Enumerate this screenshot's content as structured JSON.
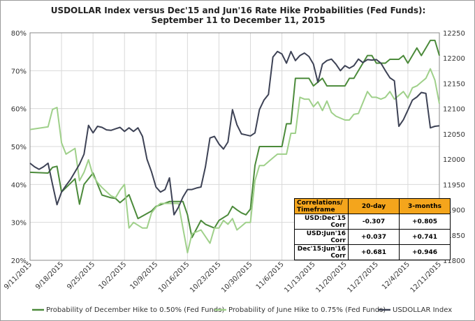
{
  "chart_data": {
    "type": "line",
    "title": [
      "USDOLLAR Index versus Dec'15 and Jun'16 Rate Hike Probabilities (Fed Funds):",
      "September 11 to December 11, 2015"
    ],
    "x_tick_labels": [
      "9/11/2015",
      "9/18/2015",
      "9/25/2015",
      "10/2/2015",
      "10/9/2015",
      "10/16/2015",
      "10/23/2015",
      "10/30/2015",
      "11/6/2015",
      "11/13/2015",
      "11/20/2015",
      "11/27/2015",
      "12/4/2015",
      "12/11/2015"
    ],
    "x_range": [
      0,
      91
    ],
    "y_left": {
      "ticks": [
        "20%",
        "30%",
        "40%",
        "50%",
        "60%",
        "70%",
        "80%"
      ],
      "ylim": [
        20,
        80
      ]
    },
    "y_right": {
      "ticks": [
        "11800",
        "11850",
        "11900",
        "11950",
        "12000",
        "12050",
        "12100",
        "12150",
        "12200",
        "12250"
      ],
      "ylim": [
        11800,
        12250
      ]
    },
    "grid": true,
    "legend_position": "bottom",
    "series": [
      {
        "name": "Probability of December Hike to 0.50% (Fed Funds)",
        "axis": "left",
        "color": "#4b8a3a",
        "x": [
          0,
          4,
          5,
          6,
          7,
          10,
          11,
          12,
          14,
          16,
          18,
          19,
          20,
          21,
          22,
          24,
          27,
          28,
          31,
          32,
          33,
          34,
          35,
          36,
          38,
          39,
          41,
          42,
          44,
          45,
          46,
          47,
          48,
          49,
          50,
          51,
          52,
          53,
          54,
          55,
          56,
          57,
          58,
          59,
          60,
          61,
          62,
          63,
          65,
          66,
          67,
          69,
          70,
          71,
          72,
          73,
          75,
          76,
          77,
          78,
          79,
          80,
          81,
          82,
          83,
          84,
          86,
          87,
          88,
          89,
          90,
          91
        ],
        "y": [
          43.2,
          43,
          44.5,
          44.8,
          38,
          41.5,
          34.8,
          40,
          43,
          37.2,
          36.5,
          36.3,
          35.2,
          36.2,
          37.3,
          31,
          33,
          34.2,
          35.5,
          35.5,
          35.5,
          35.5,
          32,
          26,
          30.5,
          29.5,
          28.5,
          30.5,
          32,
          34.2,
          33.3,
          32.5,
          32,
          33.5,
          45,
          50,
          50,
          50,
          50,
          50,
          50,
          56,
          56,
          68,
          68,
          68,
          68,
          66,
          68,
          66,
          66,
          66,
          66,
          68,
          68,
          70,
          74,
          74,
          72,
          72,
          72,
          73,
          73,
          73,
          74,
          72,
          76,
          74,
          76,
          78,
          78,
          74
        ]
      },
      {
        "name": "Probability of June Hike to 0.75% (Fed Funds)",
        "axis": "left",
        "color": "#9fd08a",
        "x": [
          0,
          4,
          5,
          6,
          7,
          8,
          10,
          11,
          12,
          13,
          14,
          15,
          16,
          18,
          19,
          20,
          21,
          22,
          23,
          25,
          26,
          27,
          28,
          29,
          30,
          32,
          33,
          34,
          35,
          36,
          38,
          40,
          41,
          42,
          43,
          44,
          45,
          46,
          47,
          48,
          49,
          50,
          51,
          52,
          54,
          55,
          56,
          57,
          58,
          59,
          60,
          61,
          62,
          63,
          64,
          65,
          66,
          67,
          68,
          70,
          71,
          72,
          73,
          75,
          76,
          77,
          78,
          79,
          80,
          81,
          83,
          84,
          85,
          86,
          87,
          88,
          89,
          90,
          91
        ],
        "y": [
          54.5,
          55.2,
          59.8,
          60.3,
          51,
          48,
          49.5,
          41,
          43.2,
          46.5,
          42.3,
          40.5,
          39.2,
          37,
          36.5,
          38.5,
          40,
          28.5,
          30,
          28.5,
          28.5,
          32.5,
          34,
          35,
          35,
          35,
          35,
          28.5,
          22,
          27,
          28,
          24.5,
          28.5,
          28.5,
          30.5,
          29.5,
          31,
          28,
          29,
          30,
          30,
          41,
          45,
          45,
          47,
          48,
          48,
          48,
          53.5,
          53.5,
          63,
          62.5,
          62.5,
          60.5,
          61.8,
          59.5,
          62,
          59,
          58,
          57,
          57,
          58.5,
          58.7,
          64.5,
          63,
          63,
          62.5,
          63,
          64.5,
          62.5,
          64.5,
          62.8,
          65.5,
          66,
          67,
          68,
          70.5,
          67.5,
          61.3
        ]
      },
      {
        "name": "USDOLLAR Index",
        "axis": "right",
        "color": "#3d4255",
        "x": [
          0,
          1,
          2,
          3,
          4,
          5,
          6,
          7,
          8,
          9,
          11,
          12,
          13,
          14,
          15,
          16,
          17,
          18,
          19,
          20,
          21,
          22,
          23,
          24,
          25,
          26,
          27,
          28,
          29,
          30,
          31,
          32,
          33,
          34,
          35,
          36,
          37,
          38,
          39,
          40,
          41,
          42,
          43,
          44,
          45,
          46,
          47,
          48,
          49,
          50,
          51,
          52,
          53,
          54,
          55,
          56,
          57,
          58,
          59,
          60,
          61,
          62,
          63,
          64,
          65,
          66,
          67,
          68,
          69,
          70,
          71,
          72,
          73,
          74,
          75,
          76,
          77,
          78,
          79,
          80,
          81,
          82,
          83,
          84,
          85,
          86,
          87,
          88,
          89,
          90,
          91
        ],
        "y": [
          11992,
          11985,
          11980,
          11985,
          11992,
          11950,
          11910,
          11935,
          11948,
          11960,
          11990,
          12010,
          12067,
          12052,
          12065,
          12063,
          12058,
          12057,
          12060,
          12063,
          12055,
          12062,
          12055,
          12062,
          12045,
          12000,
          11975,
          11945,
          11935,
          11940,
          11963,
          11890,
          11905,
          11925,
          11940,
          11940,
          11943,
          11945,
          11985,
          12042,
          12045,
          12030,
          12020,
          12034,
          12098,
          12068,
          12050,
          12048,
          12046,
          12052,
          12098,
          12117,
          12128,
          12202,
          12213,
          12208,
          12190,
          12213,
          12195,
          12205,
          12210,
          12203,
          12188,
          12152,
          12188,
          12195,
          12198,
          12188,
          12175,
          12185,
          12180,
          12185,
          12198,
          12191,
          12197,
          12196,
          12197,
          12190,
          12175,
          12161,
          12155,
          12065,
          12078,
          12097,
          12117,
          12123,
          12132,
          12130,
          12062,
          12065,
          12066
        ]
      }
    ],
    "table": {
      "headers": [
        "Correlations/ Timeframe",
        "20-day",
        "3-months"
      ],
      "rows": [
        {
          "label": "USD:Dec'15 Corr",
          "d20": "-0.307",
          "m3": "+0.805"
        },
        {
          "label": "USD:Jun'16 Corr",
          "d20": "+0.037",
          "m3": "+0.741"
        },
        {
          "label": "Dec'15:Jun'16 Corr",
          "d20": "+0.681",
          "m3": "+0.946"
        }
      ]
    }
  }
}
